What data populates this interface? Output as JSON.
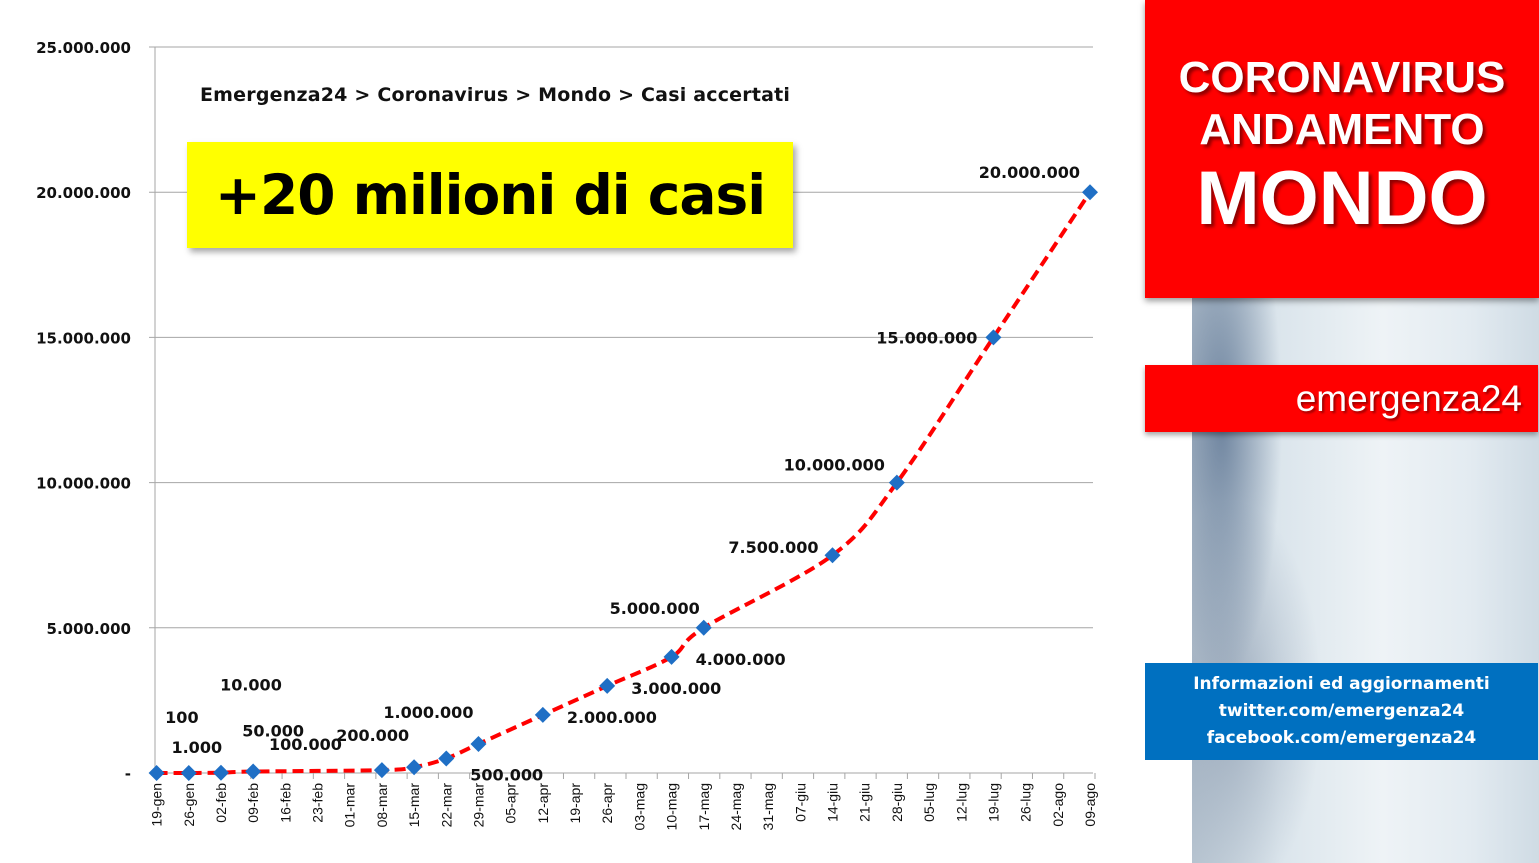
{
  "breadcrumb": "Emergenza24  > Coronavirus >  Mondo > Casi accertati",
  "headline": "+20 milioni di casi",
  "side_panel": {
    "title_line1": "CORONAVIRUS",
    "title_line2": "ANDAMENTO",
    "title_line3": "MONDO",
    "brand": "emergenza24",
    "info_line1": "Informazioni ed aggiornamenti",
    "info_line2": "twitter.com/emergenza24",
    "info_line3": "facebook.com/emergenza24"
  },
  "colors": {
    "line": "#ff0000",
    "marker": "#1f6fc5",
    "headline_bg": "#ffff00",
    "panel_red": "#ff0000",
    "panel_blue": "#0070c0",
    "grid": "#a6a6a6"
  },
  "chart_data": {
    "type": "line",
    "title": "",
    "xlabel": "",
    "ylabel": "",
    "ylim": [
      0,
      25000000
    ],
    "yticks": [
      {
        "value": 0,
        "label": "-"
      },
      {
        "value": 5000000,
        "label": "5.000.000"
      },
      {
        "value": 10000000,
        "label": "10.000.000"
      },
      {
        "value": 15000000,
        "label": "15.000.000"
      },
      {
        "value": 20000000,
        "label": "20.000.000"
      },
      {
        "value": 25000000,
        "label": "25.000.000"
      }
    ],
    "categories": [
      "19-gen",
      "26-gen",
      "02-feb",
      "09-feb",
      "16-feb",
      "23-feb",
      "01-mar",
      "08-mar",
      "15-mar",
      "22-mar",
      "29-mar",
      "05-apr",
      "12-apr",
      "19-apr",
      "26-apr",
      "03-mag",
      "10-mag",
      "17-mag",
      "24-mag",
      "31-mag",
      "07-giu",
      "14-giu",
      "21-giu",
      "28-giu",
      "05-lug",
      "12-lug",
      "19-lug",
      "26-lug",
      "02-ago",
      "09-ago"
    ],
    "grid": true,
    "legend": "none",
    "series": [
      {
        "points": [
          {
            "x": "19-gen",
            "y": 100
          },
          {
            "x": "26-gen",
            "y": 1000
          },
          {
            "x": "02-feb",
            "y": 10000
          },
          {
            "x": "09-feb",
            "y": 50000
          },
          {
            "x": "08-mar",
            "y": 100000
          },
          {
            "x": "15-mar",
            "y": 200000
          },
          {
            "x": "22-mar",
            "y": 500000
          },
          {
            "x": "29-mar",
            "y": 1000000
          },
          {
            "x": "12-apr",
            "y": 2000000
          },
          {
            "x": "26-apr",
            "y": 3000000
          },
          {
            "x": "10-mag",
            "y": 4000000
          },
          {
            "x": "17-mag",
            "y": 5000000
          },
          {
            "x": "14-giu",
            "y": 7500000
          },
          {
            "x": "28-giu",
            "y": 10000000
          },
          {
            "x": "19-lug",
            "y": 15000000
          },
          {
            "x": "09-ago",
            "y": 20000000
          }
        ]
      }
    ],
    "data_labels": [
      {
        "text": "100",
        "x": "19-gen",
        "y": 100,
        "pos": "nw"
      },
      {
        "text": "1.000",
        "x": "26-gen",
        "y": 1000,
        "pos": "n"
      },
      {
        "text": "10.000",
        "x": "02-feb",
        "y": 10000,
        "pos": "high"
      },
      {
        "text": "50.000",
        "x": "09-feb",
        "y": 50000,
        "pos": "nw"
      },
      {
        "text": "100.000",
        "x": "08-mar",
        "y": 100000,
        "pos": "nw"
      },
      {
        "text": "200.000",
        "x": "15-mar",
        "y": 200000,
        "pos": "nw"
      },
      {
        "text": "500.000",
        "x": "22-mar",
        "y": 500000,
        "pos": "se"
      },
      {
        "text": "1.000.000",
        "x": "29-mar",
        "y": 1000000,
        "pos": "nw"
      },
      {
        "text": "2.000.000",
        "x": "12-apr",
        "y": 2000000,
        "pos": "se"
      },
      {
        "text": "3.000.000",
        "x": "26-apr",
        "y": 3000000,
        "pos": "se"
      },
      {
        "text": "4.000.000",
        "x": "10-mag",
        "y": 4000000,
        "pos": "se"
      },
      {
        "text": "5.000.000",
        "x": "17-mag",
        "y": 5000000,
        "pos": "nw"
      },
      {
        "text": "7.500.000",
        "x": "14-giu",
        "y": 7500000,
        "pos": "nw"
      },
      {
        "text": "10.000.000",
        "x": "28-giu",
        "y": 10000000,
        "pos": "nw"
      },
      {
        "text": "15.000.000",
        "x": "19-lug",
        "y": 15000000,
        "pos": "w"
      },
      {
        "text": "20.000.000",
        "x": "09-ago",
        "y": 20000000,
        "pos": "nw"
      }
    ]
  }
}
